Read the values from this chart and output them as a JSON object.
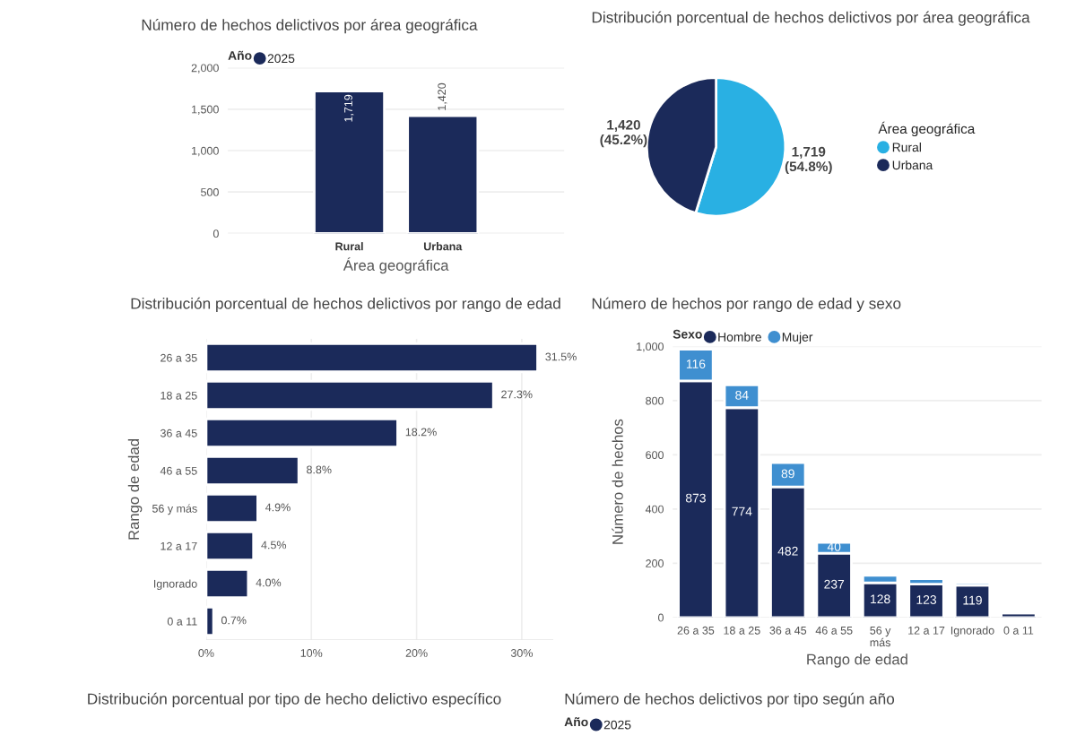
{
  "chart_data": [
    {
      "type": "bar",
      "title": "Número de hechos delictivos por área geográfica",
      "xlabel": "Área geográfica",
      "legend_title": "Año",
      "legend": "top left",
      "categories": [
        "Rural",
        "Urbana"
      ],
      "series": [
        {
          "name": "2025",
          "color": "#1b2a5a",
          "values": [
            1719,
            1420
          ],
          "value_labels": [
            "1,719",
            "1,420"
          ]
        }
      ],
      "ylim": [
        0,
        2000
      ],
      "yticks": [
        0,
        500,
        {
          "value": 1000,
          "label": "1,000"
        },
        {
          "value": 1500,
          "label": "1,500"
        },
        {
          "value": 2000,
          "label": "2,000"
        }
      ],
      "grid": "y"
    },
    {
      "type": "pie",
      "title": "Distribución porcentual de hechos delictivos por área geográfica",
      "legend_title": "Área geográfica",
      "legend": "right",
      "categories": [
        "Rural",
        "Urbana"
      ],
      "values": [
        1719,
        1420
      ],
      "colors": [
        "#29b0e3",
        "#1b2a5a"
      ],
      "value_labels": [
        "1,719\n(54.8%)",
        "1,420\n(45.2%)"
      ]
    },
    {
      "type": "bar",
      "orientation": "horizontal",
      "title": "Distribución porcentual de hechos delictivos por rango de edad",
      "ylabel": "Rango de edad",
      "categories": [
        "26 a 35",
        "18 a 25",
        "36 a 45",
        "46 a 55",
        "56 y más",
        "12 a 17",
        "Ignorado",
        "0 a 11"
      ],
      "series": [
        {
          "color": "#1b2a5a",
          "values": [
            31.5,
            27.3,
            18.2,
            8.8,
            4.9,
            4.5,
            4.0,
            0.7
          ],
          "value_labels": [
            "31.5%",
            "27.3%",
            "18.2%",
            "8.8%",
            "4.9%",
            "4.5%",
            "4.0%",
            "0.7%"
          ]
        }
      ],
      "xlim": [
        0,
        33
      ],
      "xticks": [
        {
          "value": 0,
          "label": "0%"
        },
        {
          "value": 10,
          "label": "10%"
        },
        {
          "value": 20,
          "label": "20%"
        },
        {
          "value": 30,
          "label": "30%"
        }
      ],
      "grid": "x"
    },
    {
      "type": "bar",
      "stacked": true,
      "title": "Número de hechos por rango de edad y sexo",
      "xlabel": "Rango de edad",
      "ylabel": "Número de hechos",
      "legend_title": "Sexo",
      "legend": "top left",
      "categories": [
        "26 a 35",
        "18 a 25",
        "36 a 45",
        "46 a 55",
        "56 y más",
        "12 a 17",
        "Ignorado",
        "0 a 11"
      ],
      "series": [
        {
          "name": "Hombre",
          "color": "#1b2a5a",
          "values": [
            873,
            774,
            482,
            237,
            128,
            123,
            119,
            16
          ],
          "value_labels": [
            "873",
            "774",
            "482",
            "237",
            "128",
            "123",
            "119",
            null
          ]
        },
        {
          "name": "Mujer",
          "color": "#3f8fd0",
          "values": [
            116,
            84,
            89,
            40,
            27,
            20,
            10,
            5
          ],
          "value_labels": [
            "116",
            "84",
            "89",
            "40",
            null,
            null,
            null,
            null
          ]
        }
      ],
      "ylim": [
        0,
        1000
      ],
      "yticks": [
        0,
        200,
        400,
        600,
        800,
        {
          "value": 1000,
          "label": "1,000"
        }
      ],
      "grid": "y"
    },
    {
      "type": "other",
      "title": "Distribución porcentual por tipo de hecho delictivo específico"
    },
    {
      "type": "other",
      "title": "Número de hechos delictivos por tipo según año",
      "legend_title": "Año",
      "legend": "top left",
      "series": [
        {
          "name": "2025",
          "color": "#1b2a5a"
        }
      ]
    }
  ]
}
